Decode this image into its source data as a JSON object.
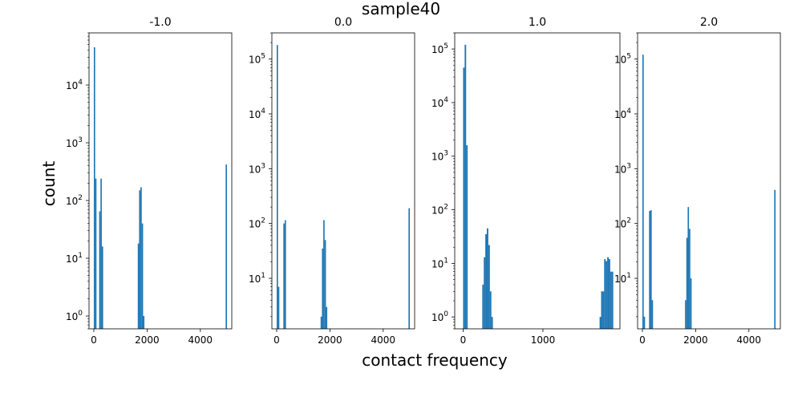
{
  "figure": {
    "suptitle": "sample40",
    "xlabel": "contact frequency",
    "ylabel": "count",
    "bar_color": "#1f77b4"
  },
  "chart_data": [
    {
      "type": "bar",
      "title": "-1.0",
      "yscale": "log",
      "xlim": [
        -180,
        5180
      ],
      "ylim": [
        0.6,
        80000
      ],
      "xticks": [
        {
          "v": 0,
          "label": "0"
        },
        {
          "v": 2000,
          "label": "2000"
        },
        {
          "v": 4000,
          "label": "4000"
        }
      ],
      "yticks": [
        {
          "v": 1,
          "label": "10^0"
        },
        {
          "v": 10,
          "label": "10^1"
        },
        {
          "v": 100,
          "label": "10^2"
        },
        {
          "v": 1000,
          "label": "10^3"
        },
        {
          "v": 10000,
          "label": "10^4"
        }
      ],
      "bin_width": 50,
      "bins": [
        {
          "x": 0,
          "y": 45000
        },
        {
          "x": 50,
          "y": 240
        },
        {
          "x": 200,
          "y": 65
        },
        {
          "x": 250,
          "y": 240
        },
        {
          "x": 300,
          "y": 16
        },
        {
          "x": 1650,
          "y": 18
        },
        {
          "x": 1700,
          "y": 150
        },
        {
          "x": 1750,
          "y": 170
        },
        {
          "x": 1800,
          "y": 40
        },
        {
          "x": 1850,
          "y": 1
        },
        {
          "x": 4950,
          "y": 420
        }
      ]
    },
    {
      "type": "bar",
      "title": "0.0",
      "yscale": "log",
      "xlim": [
        -180,
        5180
      ],
      "ylim": [
        1.2,
        300000
      ],
      "xticks": [
        {
          "v": 0,
          "label": "0"
        },
        {
          "v": 2000,
          "label": "2000"
        },
        {
          "v": 4000,
          "label": "4000"
        }
      ],
      "yticks": [
        {
          "v": 10,
          "label": "10^1"
        },
        {
          "v": 100,
          "label": "10^2"
        },
        {
          "v": 1000,
          "label": "10^3"
        },
        {
          "v": 10000,
          "label": "10^4"
        },
        {
          "v": 100000,
          "label": "10^5"
        }
      ],
      "bin_width": 50,
      "bins": [
        {
          "x": 0,
          "y": 180000
        },
        {
          "x": 50,
          "y": 7
        },
        {
          "x": 250,
          "y": 100
        },
        {
          "x": 300,
          "y": 115
        },
        {
          "x": 1650,
          "y": 2
        },
        {
          "x": 1700,
          "y": 35
        },
        {
          "x": 1750,
          "y": 115
        },
        {
          "x": 1800,
          "y": 50
        },
        {
          "x": 1850,
          "y": 3
        },
        {
          "x": 4950,
          "y": 190
        }
      ]
    },
    {
      "type": "bar",
      "title": "1.0",
      "yscale": "log",
      "xlim": [
        -105,
        1965
      ],
      "ylim": [
        0.6,
        200000
      ],
      "xticks": [
        {
          "v": 0,
          "label": "0"
        },
        {
          "v": 1000,
          "label": "1000"
        }
      ],
      "yticks": [
        {
          "v": 1,
          "label": "10^0"
        },
        {
          "v": 10,
          "label": "10^1"
        },
        {
          "v": 100,
          "label": "10^2"
        },
        {
          "v": 1000,
          "label": "10^3"
        },
        {
          "v": 10000,
          "label": "10^4"
        },
        {
          "v": 100000,
          "label": "10^5"
        }
      ],
      "bin_width": 19,
      "bins": [
        {
          "x": 0,
          "y": 45000
        },
        {
          "x": 19,
          "y": 120000
        },
        {
          "x": 38,
          "y": 1600
        },
        {
          "x": 240,
          "y": 4
        },
        {
          "x": 259,
          "y": 13
        },
        {
          "x": 278,
          "y": 35
        },
        {
          "x": 297,
          "y": 45
        },
        {
          "x": 316,
          "y": 22
        },
        {
          "x": 335,
          "y": 3
        },
        {
          "x": 354,
          "y": 1
        },
        {
          "x": 1710,
          "y": 1
        },
        {
          "x": 1729,
          "y": 3
        },
        {
          "x": 1748,
          "y": 3
        },
        {
          "x": 1767,
          "y": 12
        },
        {
          "x": 1786,
          "y": 11
        },
        {
          "x": 1805,
          "y": 13
        },
        {
          "x": 1824,
          "y": 12
        },
        {
          "x": 1843,
          "y": 7
        },
        {
          "x": 1862,
          "y": 7
        }
      ]
    },
    {
      "type": "bar",
      "title": "2.0",
      "yscale": "log",
      "xlim": [
        -180,
        5180
      ],
      "ylim": [
        1.2,
        300000
      ],
      "xticks": [
        {
          "v": 0,
          "label": "0"
        },
        {
          "v": 2000,
          "label": "2000"
        },
        {
          "v": 4000,
          "label": "4000"
        }
      ],
      "yticks": [
        {
          "v": 10,
          "label": "10^1"
        },
        {
          "v": 100,
          "label": "10^2"
        },
        {
          "v": 1000,
          "label": "10^3"
        },
        {
          "v": 10000,
          "label": "10^4"
        },
        {
          "v": 100000,
          "label": "10^5"
        }
      ],
      "bin_width": 50,
      "bins": [
        {
          "x": 0,
          "y": 120000
        },
        {
          "x": 50,
          "y": 2
        },
        {
          "x": 250,
          "y": 170
        },
        {
          "x": 300,
          "y": 175
        },
        {
          "x": 350,
          "y": 4
        },
        {
          "x": 1600,
          "y": 4
        },
        {
          "x": 1650,
          "y": 55
        },
        {
          "x": 1700,
          "y": 200
        },
        {
          "x": 1750,
          "y": 80
        },
        {
          "x": 1800,
          "y": 10
        },
        {
          "x": 4950,
          "y": 410
        }
      ]
    }
  ]
}
